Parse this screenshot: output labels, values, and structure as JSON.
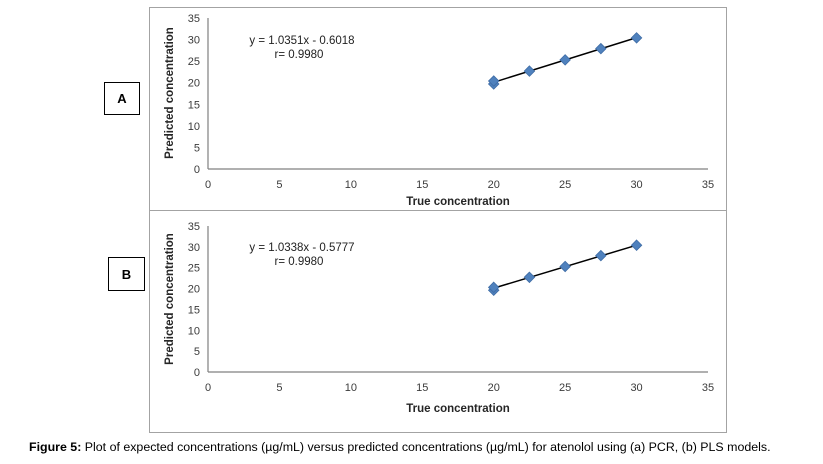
{
  "caption": {
    "prefix": "Figure 5:",
    "text": " Plot of expected concentrations (µg/mL) versus predicted concentrations (µg/mL) for atenolol using (a) PCR, (b) PLS models."
  },
  "colors": {
    "marker_fill": "#4F81BD",
    "marker_edge": "#3E6CA5",
    "trendline": "#000000",
    "axis_line": "#808080",
    "tick_text": "#3B3B3B",
    "panel_border": "#A3A3A3",
    "label_box_border": "#000000"
  },
  "chart_data": [
    {
      "id": "A",
      "panel_label": "A",
      "type": "scatter",
      "equation": "y = 1.0351x - 0.6018",
      "r_label": "r= 0.9980",
      "xlabel": "True concentration",
      "ylabel": "Predicted concentration",
      "xlim": [
        0,
        35
      ],
      "ylim": [
        0,
        35
      ],
      "xticks": [
        0,
        5,
        10,
        15,
        20,
        25,
        30,
        35
      ],
      "yticks": [
        0,
        5,
        10,
        15,
        20,
        25,
        30,
        35
      ],
      "points": [
        {
          "x": 20,
          "y": 19.7
        },
        {
          "x": 20,
          "y": 20.4
        },
        {
          "x": 22.5,
          "y": 22.7
        },
        {
          "x": 25,
          "y": 25.3
        },
        {
          "x": 27.5,
          "y": 27.9
        },
        {
          "x": 30,
          "y": 30.4
        }
      ],
      "trendline": {
        "x1": 20,
        "y1": 20.1,
        "x2": 30,
        "y2": 30.45
      },
      "legend": null,
      "grid": false
    },
    {
      "id": "B",
      "panel_label": "B",
      "type": "scatter",
      "equation": "y = 1.0338x - 0.5777",
      "r_label": "r= 0.9980",
      "xlabel": "True concentration",
      "ylabel": "Predicted concentration",
      "xlim": [
        0,
        35
      ],
      "ylim": [
        0,
        35
      ],
      "xticks": [
        0,
        5,
        10,
        15,
        20,
        25,
        30,
        35
      ],
      "yticks": [
        0,
        5,
        10,
        15,
        20,
        25,
        30,
        35
      ],
      "points": [
        {
          "x": 20,
          "y": 19.6
        },
        {
          "x": 20,
          "y": 20.3
        },
        {
          "x": 22.5,
          "y": 22.7
        },
        {
          "x": 25,
          "y": 25.3
        },
        {
          "x": 27.5,
          "y": 27.9
        },
        {
          "x": 30,
          "y": 30.4
        }
      ],
      "trendline": {
        "x1": 20,
        "y1": 20.1,
        "x2": 30,
        "y2": 30.4
      },
      "legend": null,
      "grid": false
    }
  ]
}
